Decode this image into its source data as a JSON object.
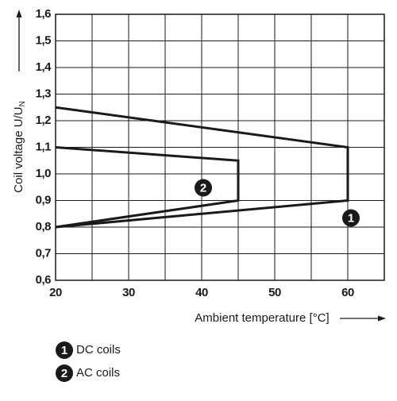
{
  "chart_data": {
    "type": "line",
    "ylabel": "Coil voltage U/U",
    "ylabel_sub": "N",
    "xlabel": "Ambient temperature [°C]",
    "xlim": [
      20,
      65
    ],
    "ylim": [
      0.6,
      1.6
    ],
    "xticks": [
      20,
      30,
      40,
      50,
      60
    ],
    "xminor_ticks": [
      25,
      35,
      45,
      55,
      65
    ],
    "yticks": [
      {
        "value": 0.6,
        "label": "0,6"
      },
      {
        "value": 0.7,
        "label": "0,7"
      },
      {
        "value": 0.8,
        "label": "0,8"
      },
      {
        "value": 0.9,
        "label": "0,9"
      },
      {
        "value": 1.0,
        "label": "1,0"
      },
      {
        "value": 1.1,
        "label": "1,1"
      },
      {
        "value": 1.2,
        "label": "1,2"
      },
      {
        "value": 1.3,
        "label": "1,3"
      },
      {
        "value": 1.4,
        "label": "1,4"
      },
      {
        "value": 1.5,
        "label": "1,5"
      },
      {
        "value": 1.6,
        "label": "1,6"
      }
    ],
    "grid": true,
    "series": [
      {
        "name": "DC coils",
        "marker": "1",
        "color": "#1a1a1a",
        "x": [
          20,
          60,
          60,
          20
        ],
        "values": [
          1.25,
          1.1,
          0.9,
          0.8
        ]
      },
      {
        "name": "AC coils",
        "marker": "2",
        "color": "#1a1a1a",
        "x": [
          20,
          45,
          45,
          20
        ],
        "values": [
          1.1,
          1.05,
          0.9,
          0.8
        ]
      }
    ]
  }
}
